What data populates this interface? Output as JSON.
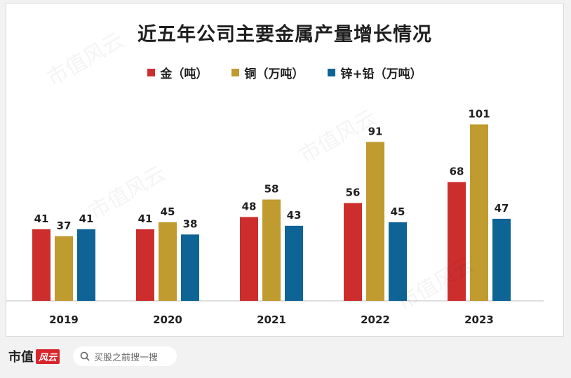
{
  "chart_data": {
    "type": "bar",
    "title": "近五年公司主要金属产量增长情况",
    "categories": [
      "2019",
      "2020",
      "2021",
      "2022",
      "2023"
    ],
    "series": [
      {
        "name": "金（吨）",
        "values": [
          41,
          41,
          48,
          56,
          68
        ],
        "color": "#cc2e2e"
      },
      {
        "name": "铜（万吨）",
        "values": [
          37,
          45,
          58,
          91,
          101
        ],
        "color": "#bf9b30"
      },
      {
        "name": "锌+铅（万吨）",
        "values": [
          41,
          38,
          43,
          45,
          47
        ],
        "color": "#0f6496"
      }
    ],
    "xlabel": "",
    "ylabel": "",
    "ylim": [
      0,
      110
    ],
    "grid": false,
    "legend_position": "top"
  },
  "watermark": "市值风云",
  "footer": {
    "logo_text": "市值",
    "logo_badge": "风云",
    "search_placeholder": "买股之前搜一搜",
    "search_icon": "search-icon"
  }
}
